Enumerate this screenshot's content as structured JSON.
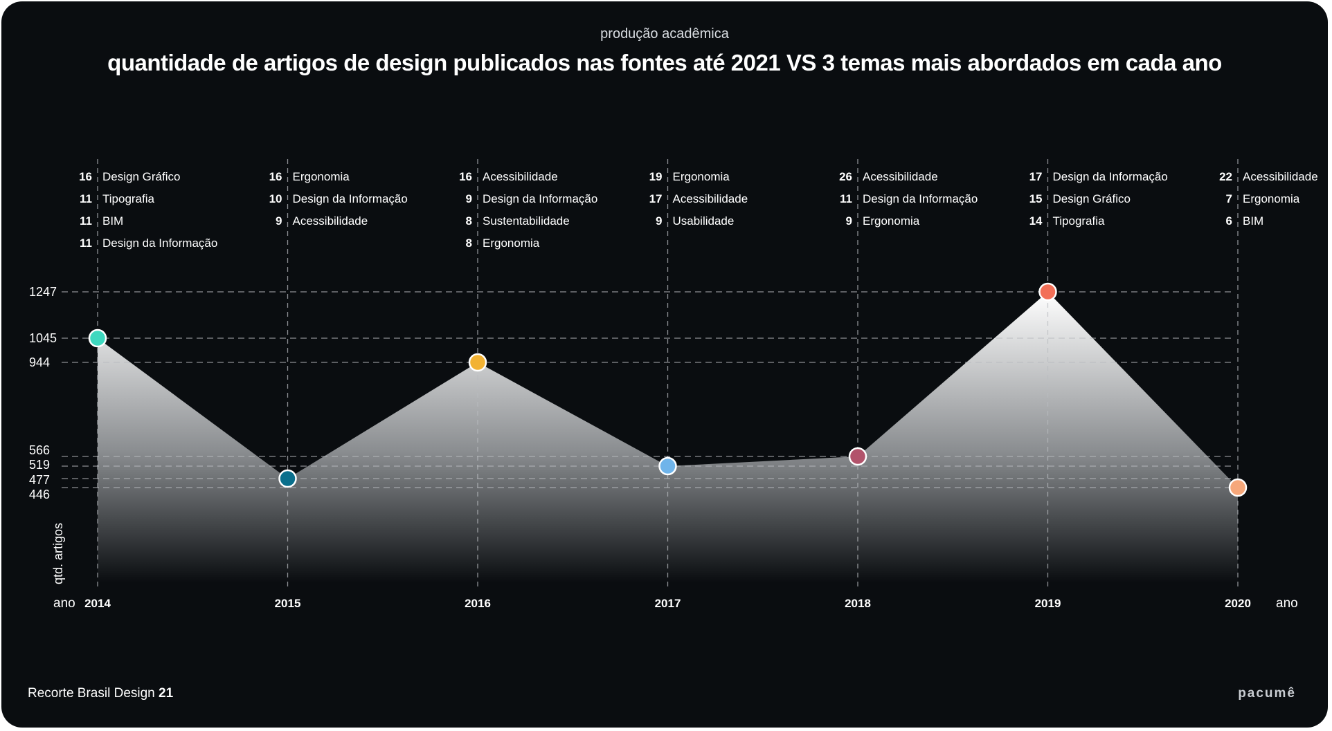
{
  "header": {
    "subtitle": "produção acadêmica",
    "title": "quantidade de artigos de design publicados nas fontes até 2021 VS 3 temas mais abordados em cada ano"
  },
  "footer": {
    "brand_text": "Recorte Brasil Design",
    "brand_number": "21",
    "logo_text": "pacumê"
  },
  "chart_data": {
    "type": "area",
    "xlabel_left": "ano",
    "xlabel_right": "ano",
    "ylabel": "qtd. artigos",
    "y_ticks": [
      1247,
      1045,
      944,
      566,
      519,
      477,
      446
    ],
    "ylim": [
      0,
      1300
    ],
    "grid": "dashed",
    "x": [
      "2014",
      "2015",
      "2016",
      "2017",
      "2018",
      "2019",
      "2020"
    ],
    "values": [
      1045,
      477,
      944,
      519,
      566,
      1247,
      446
    ],
    "point_colors": [
      "#3ed8bf",
      "#0a6f8c",
      "#f2b233",
      "#6fb4ea",
      "#b2536b",
      "#f26f57",
      "#f6a77a"
    ],
    "topics": [
      [
        {
          "count": "16",
          "name": "Design Gráfico"
        },
        {
          "count": "11",
          "name": "Tipografia"
        },
        {
          "count": "11",
          "name": "BIM"
        },
        {
          "count": "11",
          "name": "Design da Informação"
        }
      ],
      [
        {
          "count": "16",
          "name": "Ergonomia"
        },
        {
          "count": "10",
          "name": "Design da Informação"
        },
        {
          "count": "9",
          "name": "Acessibilidade"
        }
      ],
      [
        {
          "count": "16",
          "name": "Acessibilidade"
        },
        {
          "count": "9",
          "name": "Design da Informação"
        },
        {
          "count": "8",
          "name": "Sustentabilidade"
        },
        {
          "count": "8",
          "name": "Ergonomia"
        }
      ],
      [
        {
          "count": "19",
          "name": "Ergonomia"
        },
        {
          "count": "17",
          "name": "Acessibilidade"
        },
        {
          "count": "9",
          "name": "Usabilidade"
        }
      ],
      [
        {
          "count": "26",
          "name": "Acessibilidade"
        },
        {
          "count": "11",
          "name": "Design da Informação"
        },
        {
          "count": "9",
          "name": "Ergonomia"
        }
      ],
      [
        {
          "count": "17",
          "name": "Design da Informação"
        },
        {
          "count": "15",
          "name": "Design Gráfico"
        },
        {
          "count": "14",
          "name": "Tipografia"
        }
      ],
      [
        {
          "count": "22",
          "name": "Acessibilidade"
        },
        {
          "count": "7",
          "name": "Ergonomia"
        },
        {
          "count": "6",
          "name": "BIM"
        }
      ]
    ]
  }
}
